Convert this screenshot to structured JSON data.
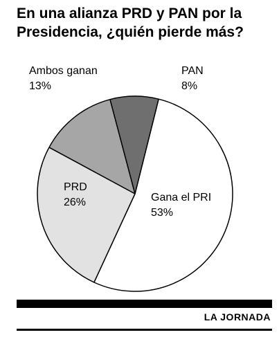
{
  "chart_data": {
    "type": "pie",
    "title": "En una alianza PRD y PAN por la Presidencia, ¿quién pierde más?",
    "slices": [
      {
        "label": "Gana el PRI",
        "value": 53,
        "value_label": "53%",
        "color": "#ffffff"
      },
      {
        "label": "PRD",
        "value": 26,
        "value_label": "26%",
        "color": "#e2e2e2"
      },
      {
        "label": "Ambos ganan",
        "value": 13,
        "value_label": "13%",
        "color": "#a6a6a6"
      },
      {
        "label": "PAN",
        "value": 8,
        "value_label": "8%",
        "color": "#6f6f6f"
      }
    ]
  },
  "source": "LA JORNADA"
}
